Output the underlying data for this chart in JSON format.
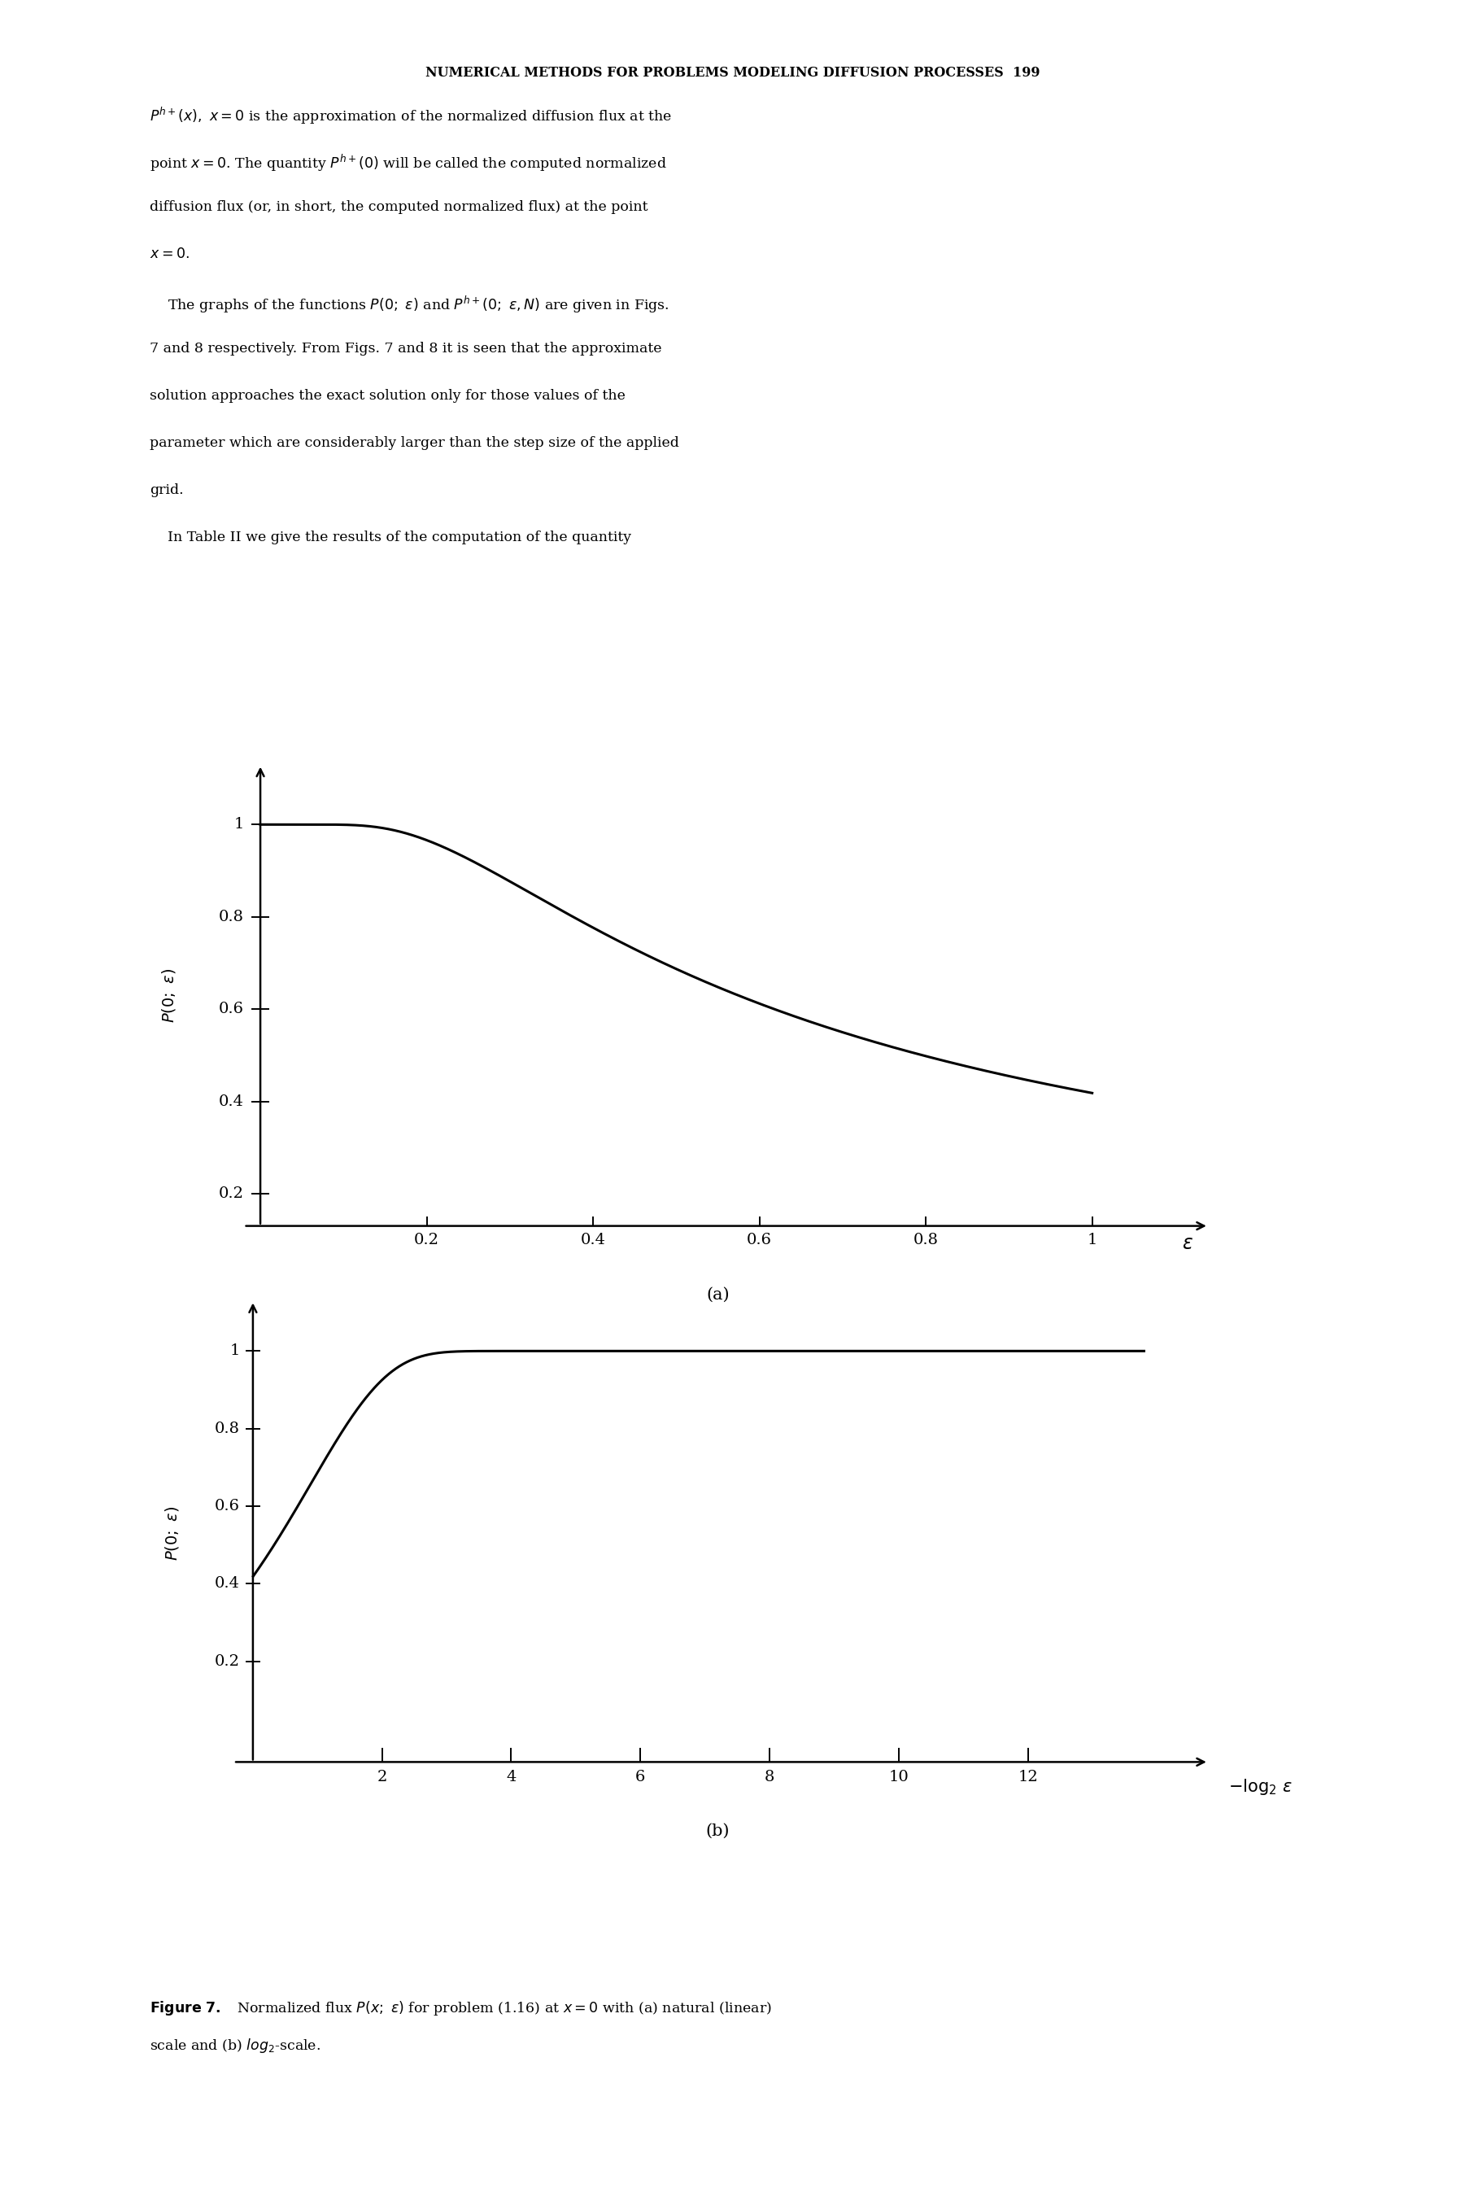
{
  "background_color": "#ffffff",
  "header": "NUMERICAL METHODS FOR PROBLEMS MODELING DIFFUSION PROCESSES  199",
  "body_text": [
    "$P^{h+}(x),\\ x = 0$ is the approximation of the normalized diffusion flux at the",
    "point $x = 0$. The quantity $P^{h+}(0)$ will be called the computed normalized",
    "diffusion flux (or, in short, the computed normalized flux) at the point",
    "$x = 0.$",
    "    The graphs of the functions $P(0;\\ \\varepsilon)$ and $P^{h+}(0;\\ \\varepsilon, N)$ are given in Figs.",
    "7 and 8 respectively. From Figs. 7 and 8 it is seen that the approximate",
    "solution approaches the exact solution only for those values of the",
    "parameter which are considerably larger than the step size of the applied",
    "grid.",
    "    In Table II we give the results of the computation of the quantity"
  ],
  "plot_a": {
    "xticks": [
      0.2,
      0.4,
      0.6,
      0.8,
      1.0
    ],
    "xtick_labels": [
      "0.2",
      "0.4",
      "0.6",
      "0.8",
      "1"
    ],
    "yticks": [
      0.2,
      0.4,
      0.6,
      0.8,
      1.0
    ],
    "ytick_labels": [
      "0.2",
      "0.4",
      "0.6",
      "0.8",
      "1"
    ],
    "label": "(a)"
  },
  "plot_b": {
    "xticks": [
      2,
      4,
      6,
      8,
      10,
      12
    ],
    "xtick_labels": [
      "2",
      "4",
      "6",
      "8",
      "10",
      "12"
    ],
    "yticks": [
      0.2,
      0.4,
      0.6,
      0.8,
      1.0
    ],
    "ytick_labels": [
      "0.2",
      "0.4",
      "0.6",
      "0.8",
      "1"
    ],
    "label": "(b)"
  },
  "caption_bold": "Figure 7.",
  "caption_rest": "   Normalized flux $P(x;\\ \\varepsilon)$ for problem (1.16) at $x = 0$ with (a) natural (linear) scale and (b) $\\mathit{log}_2$-scale."
}
